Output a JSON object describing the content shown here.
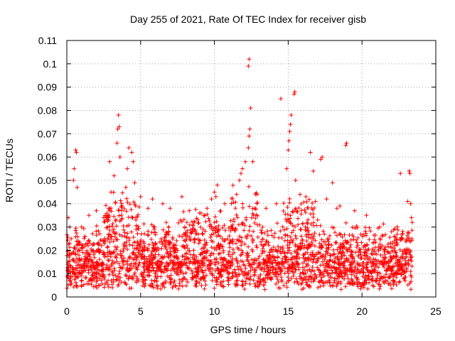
{
  "chart_data": {
    "type": "scatter",
    "title": "Day 255 of 2021, Rate Of TEC Index for receiver gisb",
    "xlabel": "GPS time / hours",
    "ylabel": "ROTI / TECUs",
    "xlim": [
      0,
      25
    ],
    "ylim": [
      0,
      0.11
    ],
    "x_ticks": [
      0,
      5,
      10,
      15,
      20,
      25
    ],
    "x_tick_labels": [
      "0",
      "5",
      "10",
      "15",
      "20",
      "25"
    ],
    "y_ticks": [
      0,
      0.01,
      0.02,
      0.03,
      0.04,
      0.05,
      0.06,
      0.07,
      0.08,
      0.09,
      0.1,
      0.11
    ],
    "y_tick_labels": [
      "0",
      "0.01",
      "0.02",
      "0.03",
      "0.04",
      "0.05",
      "0.06",
      "0.07",
      "0.08",
      "0.09",
      "0.1",
      "0.11"
    ],
    "grid": true,
    "marker": "+",
    "series": [
      {
        "name": "ROTI",
        "color": "#ff0000",
        "points": [
          [
            0.1,
            0.034
          ],
          [
            0.2,
            0.03
          ],
          [
            0.3,
            0.025
          ],
          [
            0.45,
            0.05
          ],
          [
            0.5,
            0.055
          ],
          [
            0.6,
            0.063
          ],
          [
            0.65,
            0.062
          ],
          [
            0.7,
            0.047
          ],
          [
            1.0,
            0.03
          ],
          [
            1.5,
            0.035
          ],
          [
            2.0,
            0.037
          ],
          [
            2.5,
            0.034
          ],
          [
            2.9,
            0.058
          ],
          [
            3.0,
            0.045
          ],
          [
            3.2,
            0.052
          ],
          [
            3.4,
            0.066
          ],
          [
            3.45,
            0.072
          ],
          [
            3.5,
            0.078
          ],
          [
            3.55,
            0.073
          ],
          [
            3.6,
            0.06
          ],
          [
            4.0,
            0.047
          ],
          [
            4.1,
            0.055
          ],
          [
            4.2,
            0.064
          ],
          [
            4.4,
            0.062
          ],
          [
            4.5,
            0.058
          ],
          [
            4.6,
            0.049
          ],
          [
            5.0,
            0.043
          ],
          [
            5.5,
            0.038
          ],
          [
            5.8,
            0.042
          ],
          [
            6.5,
            0.04
          ],
          [
            7.0,
            0.038
          ],
          [
            7.8,
            0.043
          ],
          [
            8.3,
            0.037
          ],
          [
            9.0,
            0.036
          ],
          [
            9.5,
            0.038
          ],
          [
            9.8,
            0.042
          ],
          [
            10.0,
            0.045
          ],
          [
            10.1,
            0.043
          ],
          [
            10.2,
            0.048
          ],
          [
            10.7,
            0.04
          ],
          [
            11.2,
            0.042
          ],
          [
            11.5,
            0.044
          ],
          [
            11.7,
            0.05
          ],
          [
            11.8,
            0.053
          ],
          [
            11.9,
            0.055
          ],
          [
            12.1,
            0.058
          ],
          [
            12.3,
            0.064
          ],
          [
            12.35,
            0.069
          ],
          [
            12.4,
            0.072
          ],
          [
            12.45,
            0.081
          ],
          [
            12.3,
            0.099
          ],
          [
            12.35,
            0.102
          ],
          [
            12.6,
            0.058
          ],
          [
            12.9,
            0.044
          ],
          [
            13.5,
            0.038
          ],
          [
            14.2,
            0.04
          ],
          [
            14.5,
            0.085
          ],
          [
            14.9,
            0.055
          ],
          [
            15.0,
            0.063
          ],
          [
            15.05,
            0.067
          ],
          [
            15.1,
            0.071
          ],
          [
            15.15,
            0.074
          ],
          [
            15.2,
            0.078
          ],
          [
            15.4,
            0.087
          ],
          [
            15.45,
            0.088
          ],
          [
            15.5,
            0.05
          ],
          [
            15.8,
            0.044
          ],
          [
            16.2,
            0.043
          ],
          [
            16.5,
            0.062
          ],
          [
            16.7,
            0.054
          ],
          [
            17.2,
            0.059
          ],
          [
            17.3,
            0.06
          ],
          [
            17.6,
            0.042
          ],
          [
            18.0,
            0.049
          ],
          [
            18.3,
            0.038
          ],
          [
            18.5,
            0.039
          ],
          [
            18.9,
            0.065
          ],
          [
            18.95,
            0.066
          ],
          [
            19.5,
            0.037
          ],
          [
            20.3,
            0.035
          ],
          [
            21.2,
            0.03
          ],
          [
            22.0,
            0.028
          ],
          [
            22.6,
            0.053
          ],
          [
            23.1,
            0.041
          ],
          [
            23.2,
            0.054
          ],
          [
            23.25,
            0.053
          ],
          [
            23.3,
            0.04
          ],
          [
            23.35,
            0.034
          ],
          [
            23.4,
            0.032
          ]
        ],
        "baseline_band": {
          "x_range": [
            0,
            23.4
          ],
          "y_typical_range": [
            0.003,
            0.025
          ]
        }
      }
    ]
  }
}
